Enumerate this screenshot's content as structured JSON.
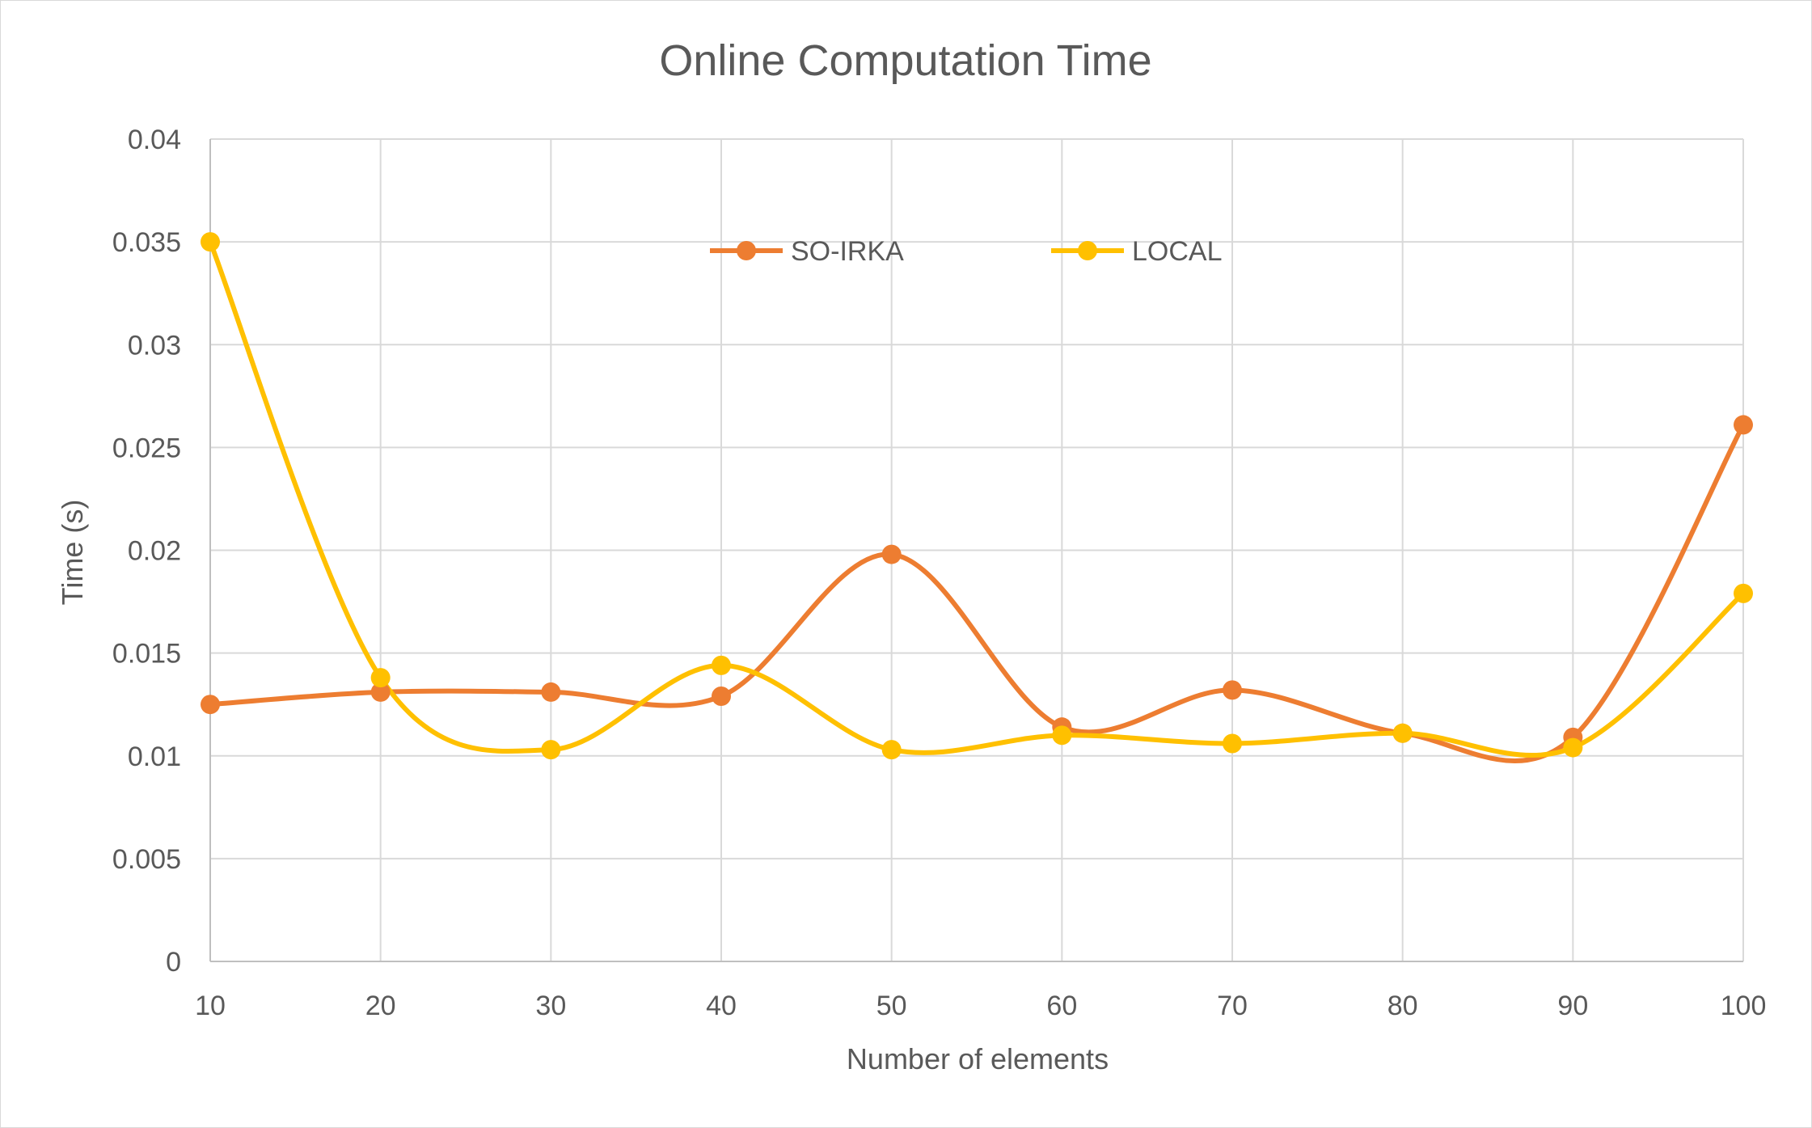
{
  "chart_data": {
    "type": "line",
    "title": "Online Computation Time",
    "xlabel": "Number of elements",
    "ylabel": "Time (s)",
    "x": [
      10,
      20,
      30,
      40,
      50,
      60,
      70,
      80,
      90,
      100
    ],
    "x_tick_labels": [
      "10",
      "20",
      "30",
      "40",
      "50",
      "60",
      "70",
      "80",
      "90",
      "100"
    ],
    "ylim": [
      0,
      0.04
    ],
    "y_ticks": [
      0,
      0.005,
      0.01,
      0.015,
      0.02,
      0.025,
      0.03,
      0.035,
      0.04
    ],
    "y_tick_labels": [
      "0",
      "0.005",
      "0.01",
      "0.015",
      "0.02",
      "0.025",
      "0.03",
      "0.035",
      "0.04"
    ],
    "grid": true,
    "smoothed": true,
    "legend_position": "top-center",
    "series": [
      {
        "name": "SO-IRKA",
        "color": "#ED7D31",
        "values": [
          0.0125,
          0.0131,
          0.0131,
          0.0129,
          0.0198,
          0.0114,
          0.0132,
          0.0111,
          0.0109,
          0.0261
        ]
      },
      {
        "name": "LOCAL",
        "color": "#FFC000",
        "values": [
          0.035,
          0.0138,
          0.0103,
          0.0144,
          0.0103,
          0.011,
          0.0106,
          0.0111,
          0.0104,
          0.0179
        ]
      }
    ]
  }
}
